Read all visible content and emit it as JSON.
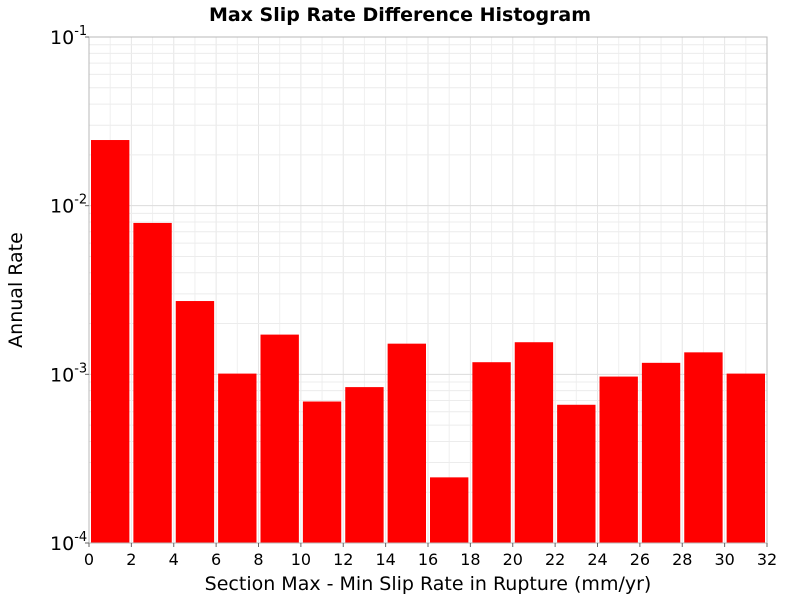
{
  "chart_data": {
    "type": "bar",
    "title": "Max Slip Rate Difference Histogram",
    "xlabel": "Section Max - Min Slip Rate in Rupture (mm/yr)",
    "ylabel": "Annual Rate",
    "xlim": [
      0,
      32
    ],
    "ylim": [
      0.0001,
      0.1
    ],
    "yscale": "log",
    "bin_width": 2,
    "x_ticks": [
      "0",
      "2",
      "4",
      "6",
      "8",
      "10",
      "12",
      "14",
      "16",
      "18",
      "20",
      "22",
      "24",
      "26",
      "28",
      "30",
      "32"
    ],
    "y_ticks": [
      {
        "base": "10",
        "exp": "-4",
        "value": 0.0001
      },
      {
        "base": "10",
        "exp": "-3",
        "value": 0.001
      },
      {
        "base": "10",
        "exp": "-2",
        "value": 0.01
      },
      {
        "base": "10",
        "exp": "-1",
        "value": 0.1
      }
    ],
    "x": [
      1,
      3,
      5,
      7,
      9,
      11,
      13,
      15,
      17,
      19,
      21,
      23,
      25,
      27,
      29,
      31
    ],
    "values": [
      0.0245,
      0.0079,
      0.00272,
      0.00101,
      0.00172,
      0.00069,
      0.00084,
      0.00152,
      0.000245,
      0.00118,
      0.00155,
      0.00066,
      0.00097,
      0.00117,
      0.00135,
      0.00101
    ],
    "bar_color": "#ff0000",
    "grid": true
  }
}
